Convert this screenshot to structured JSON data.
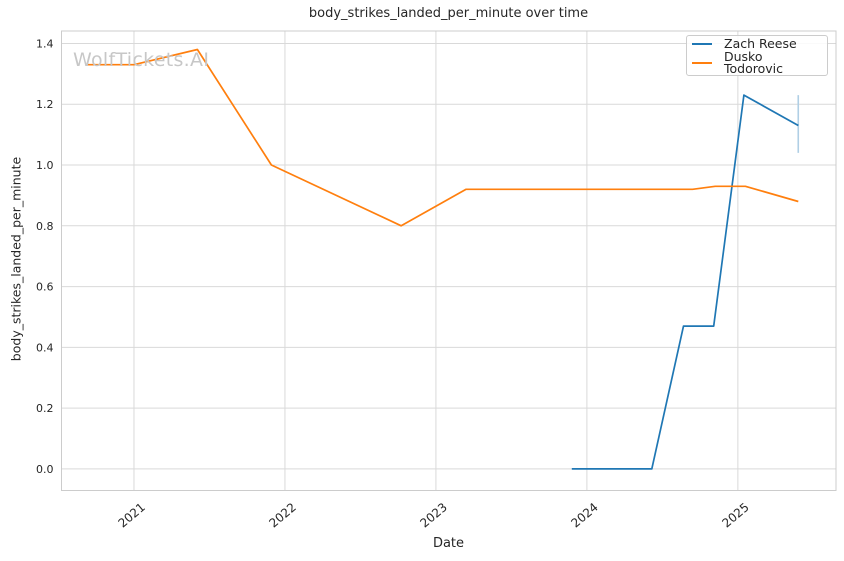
{
  "figure": {
    "watermark": "WolfTickets.AI"
  },
  "chart_data": {
    "type": "line",
    "title": "body_strikes_landed_per_minute over time",
    "xlabel": "Date",
    "ylabel": "body_strikes_landed_per_minute",
    "xlim": [
      2020.52,
      2025.65
    ],
    "ylim": [
      -0.071,
      1.441
    ],
    "grid": true,
    "legend_position": "upper right",
    "x_ticks": {
      "values": [
        2021,
        2022,
        2023,
        2024,
        2025
      ],
      "labels": [
        "2021",
        "2022",
        "2023",
        "2024",
        "2025"
      ]
    },
    "y_ticks": {
      "values": [
        0.0,
        0.2,
        0.4,
        0.6,
        0.8,
        1.0,
        1.2,
        1.4
      ],
      "labels": [
        "0.0",
        "0.2",
        "0.4",
        "0.6",
        "0.8",
        "1.0",
        "1.2",
        "1.4"
      ]
    },
    "series": [
      {
        "name": "Zach Reese",
        "color": "#1f77b4",
        "x": [
          2023.9,
          2024.43,
          2024.64,
          2024.84,
          2025.04,
          2025.4
        ],
        "y": [
          0.0,
          0.0,
          0.47,
          0.47,
          1.23,
          1.13
        ]
      },
      {
        "name": "Dusko Todorovic",
        "color": "#ff7f0e",
        "x": [
          2020.68,
          2021.0,
          2021.42,
          2021.91,
          2022.77,
          2023.2,
          2024.7,
          2024.85,
          2025.05,
          2025.4
        ],
        "y": [
          1.33,
          1.33,
          1.38,
          1.0,
          0.8,
          0.92,
          0.92,
          0.93,
          0.93,
          0.88
        ]
      }
    ],
    "error_bars": [
      {
        "series": "Zach Reese",
        "x": 2025.4,
        "y_min": 1.04,
        "y_max": 1.23,
        "color": "#b0cfe5"
      }
    ],
    "colors": {
      "grid": "#d9d9d9",
      "spine": "#cccccc",
      "text": "#262626",
      "watermark": "#c7c7c7",
      "background": "#ffffff"
    }
  }
}
